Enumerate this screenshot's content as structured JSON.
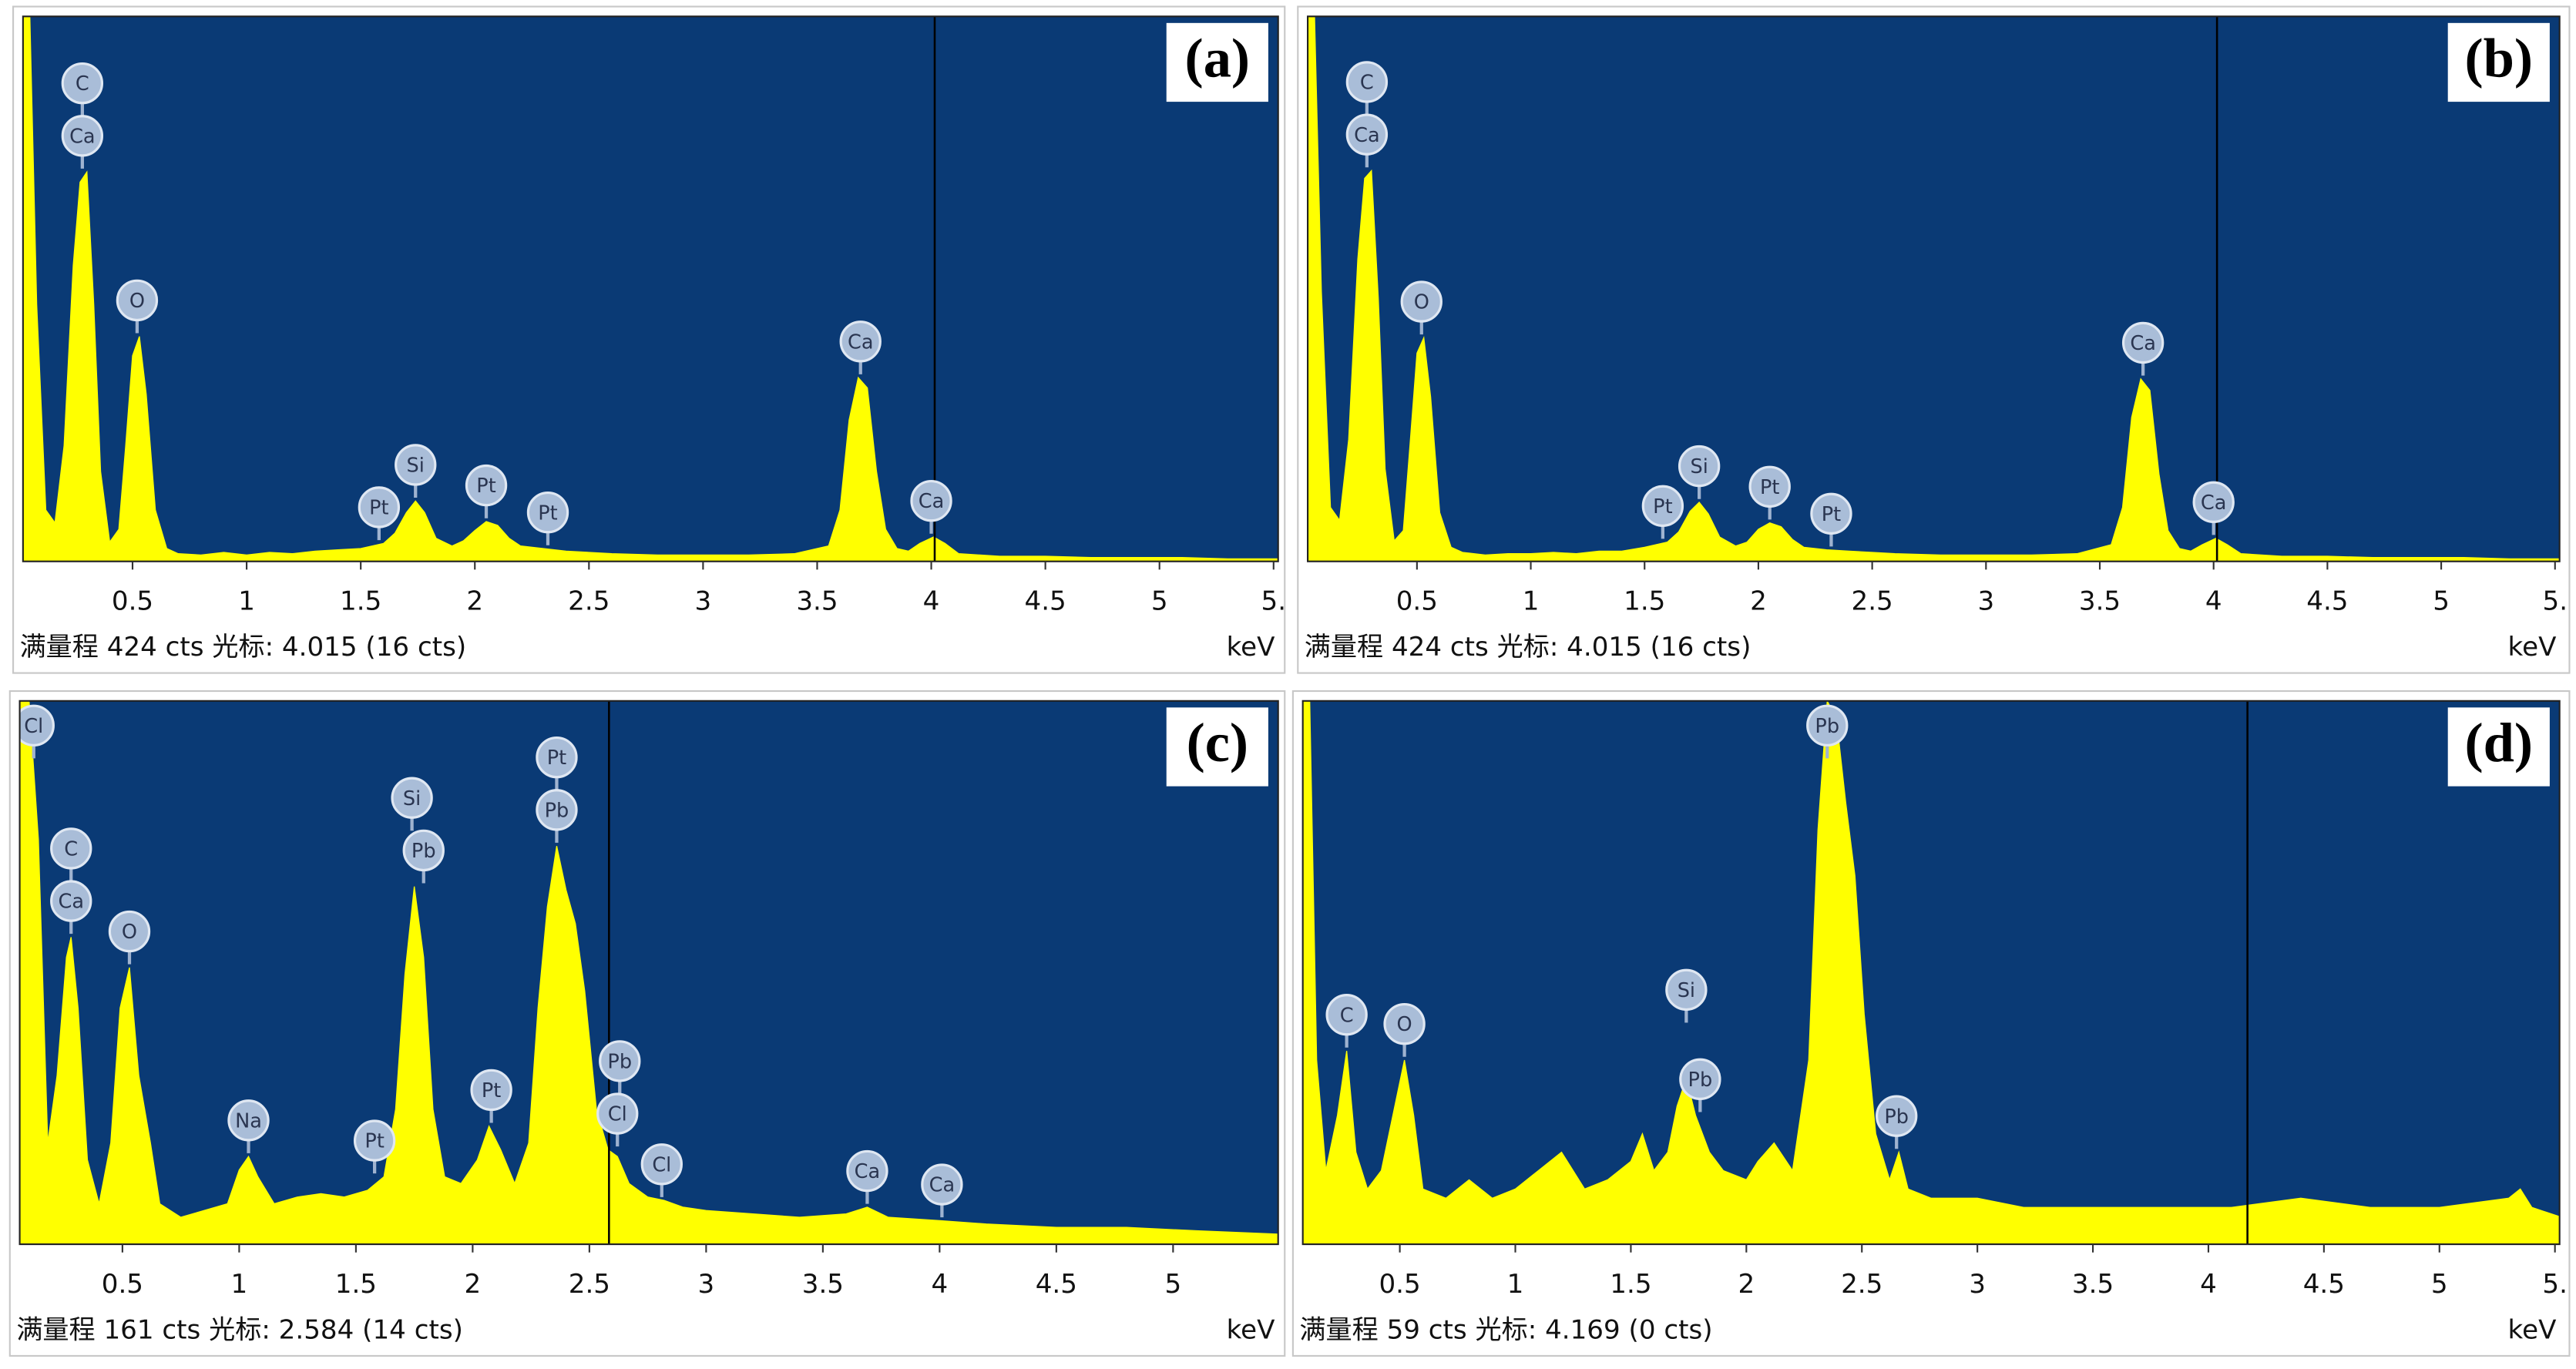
{
  "chart_data": [
    {
      "type": "area",
      "panel_label": "(a)",
      "color": "#ffff00",
      "background": "#0a3a75",
      "x": [
        0.02,
        0.05,
        0.08,
        0.12,
        0.16,
        0.2,
        0.24,
        0.27,
        0.3,
        0.33,
        0.36,
        0.4,
        0.44,
        0.47,
        0.5,
        0.53,
        0.56,
        0.6,
        0.65,
        0.7,
        0.8,
        0.9,
        1.0,
        1.1,
        1.2,
        1.3,
        1.4,
        1.5,
        1.6,
        1.65,
        1.7,
        1.74,
        1.78,
        1.83,
        1.9,
        1.95,
        2.0,
        2.05,
        2.1,
        2.15,
        2.2,
        2.3,
        2.4,
        2.5,
        2.6,
        2.8,
        3.0,
        3.2,
        3.4,
        3.55,
        3.6,
        3.64,
        3.68,
        3.72,
        3.76,
        3.8,
        3.85,
        3.9,
        3.95,
        4.01,
        4.06,
        4.12,
        4.3,
        4.5,
        4.7,
        4.9,
        5.1,
        5.3,
        5.52
      ],
      "values": [
        424,
        424,
        200,
        40,
        30,
        90,
        230,
        295,
        303,
        200,
        70,
        15,
        25,
        90,
        160,
        175,
        130,
        40,
        10,
        6,
        5,
        7,
        5,
        7,
        6,
        8,
        9,
        10,
        14,
        22,
        38,
        47,
        38,
        18,
        12,
        16,
        24,
        31,
        28,
        18,
        12,
        10,
        8,
        7,
        6,
        5,
        5,
        5,
        6,
        12,
        40,
        110,
        143,
        135,
        70,
        25,
        10,
        8,
        14,
        19,
        14,
        6,
        4,
        4,
        3,
        3,
        3,
        2,
        2
      ],
      "xlim": [
        0.02,
        5.52
      ],
      "ylim": [
        0,
        424
      ],
      "xticks": [
        0.5,
        1,
        1.5,
        2,
        2.5,
        3,
        3.5,
        4,
        4.5,
        5,
        {
          "value": 5.5,
          "label": "5."
        }
      ],
      "cursor": 4.015,
      "x_label": "keV",
      "footer": "满量程 424 cts 光标: 4.015  (16 cts)",
      "peak_labels": [
        {
          "text": "C",
          "x": 0.28
        },
        {
          "text": "Ca",
          "x": 0.28
        },
        {
          "text": "O",
          "x": 0.52
        },
        {
          "text": "Pt",
          "x": 1.58
        },
        {
          "text": "Si",
          "x": 1.74
        },
        {
          "text": "Pt",
          "x": 2.05
        },
        {
          "text": "Pt",
          "x": 2.32
        },
        {
          "text": "Ca",
          "x": 3.69
        },
        {
          "text": "Ca",
          "x": 4.0
        }
      ]
    },
    {
      "type": "area",
      "panel_label": "(b)",
      "color": "#ffff00",
      "background": "#0a3a75",
      "x": [
        0.02,
        0.05,
        0.08,
        0.12,
        0.16,
        0.2,
        0.24,
        0.27,
        0.3,
        0.33,
        0.36,
        0.4,
        0.44,
        0.47,
        0.5,
        0.53,
        0.56,
        0.6,
        0.65,
        0.7,
        0.8,
        0.9,
        1.0,
        1.1,
        1.2,
        1.3,
        1.4,
        1.5,
        1.6,
        1.65,
        1.7,
        1.74,
        1.78,
        1.83,
        1.9,
        1.95,
        2.0,
        2.05,
        2.1,
        2.15,
        2.2,
        2.3,
        2.4,
        2.5,
        2.6,
        2.8,
        3.0,
        3.2,
        3.4,
        3.55,
        3.6,
        3.64,
        3.68,
        3.72,
        3.76,
        3.8,
        3.85,
        3.9,
        3.95,
        4.01,
        4.06,
        4.12,
        4.3,
        4.5,
        4.7,
        4.9,
        5.1,
        5.3,
        5.52
      ],
      "values": [
        424,
        424,
        210,
        42,
        32,
        95,
        235,
        298,
        304,
        205,
        72,
        16,
        24,
        92,
        162,
        174,
        128,
        38,
        11,
        7,
        5,
        6,
        6,
        7,
        6,
        8,
        8,
        11,
        15,
        23,
        39,
        46,
        37,
        19,
        12,
        15,
        25,
        30,
        27,
        17,
        11,
        9,
        8,
        7,
        6,
        5,
        5,
        5,
        6,
        13,
        42,
        112,
        142,
        133,
        68,
        24,
        10,
        8,
        13,
        18,
        13,
        6,
        4,
        4,
        3,
        3,
        3,
        2,
        2
      ],
      "xlim": [
        0.02,
        5.52
      ],
      "ylim": [
        0,
        424
      ],
      "xticks": [
        0.5,
        1,
        1.5,
        2,
        2.5,
        3,
        3.5,
        4,
        4.5,
        5,
        {
          "value": 5.5,
          "label": "5."
        }
      ],
      "cursor": 4.015,
      "x_label": "keV",
      "footer": "满量程 424 cts 光标: 4.015  (16 cts)",
      "peak_labels": [
        {
          "text": "C",
          "x": 0.28
        },
        {
          "text": "Ca",
          "x": 0.28
        },
        {
          "text": "O",
          "x": 0.52
        },
        {
          "text": "Pt",
          "x": 1.58
        },
        {
          "text": "Si",
          "x": 1.74
        },
        {
          "text": "Pt",
          "x": 2.05
        },
        {
          "text": "Pt",
          "x": 2.32
        },
        {
          "text": "Ca",
          "x": 3.69
        },
        {
          "text": "Ca",
          "x": 4.0
        }
      ]
    },
    {
      "type": "area",
      "panel_label": "(c)",
      "color": "#ffff00",
      "background": "#0a3a75",
      "x": [
        0.06,
        0.1,
        0.14,
        0.18,
        0.22,
        0.26,
        0.28,
        0.31,
        0.35,
        0.4,
        0.45,
        0.49,
        0.53,
        0.57,
        0.62,
        0.66,
        0.75,
        0.85,
        0.95,
        1.0,
        1.04,
        1.08,
        1.15,
        1.25,
        1.35,
        1.45,
        1.55,
        1.62,
        1.67,
        1.71,
        1.75,
        1.79,
        1.83,
        1.88,
        1.95,
        2.02,
        2.07,
        2.12,
        2.18,
        2.24,
        2.28,
        2.32,
        2.36,
        2.4,
        2.44,
        2.48,
        2.53,
        2.58,
        2.62,
        2.67,
        2.75,
        2.82,
        2.9,
        3.0,
        3.2,
        3.4,
        3.6,
        3.69,
        3.78,
        4.0,
        4.2,
        4.5,
        4.8,
        5.1,
        5.45
      ],
      "values": [
        161,
        161,
        120,
        30,
        50,
        85,
        91,
        70,
        25,
        12,
        30,
        70,
        82,
        50,
        30,
        12,
        8,
        10,
        12,
        22,
        26,
        20,
        12,
        14,
        15,
        14,
        16,
        20,
        40,
        80,
        106,
        85,
        40,
        20,
        18,
        25,
        35,
        28,
        18,
        30,
        70,
        100,
        118,
        105,
        95,
        75,
        40,
        28,
        26,
        18,
        14,
        13,
        11,
        10,
        9,
        8,
        9,
        11,
        8,
        7,
        6,
        5,
        5,
        4,
        3
      ],
      "xlim": [
        0.06,
        5.45
      ],
      "ylim": [
        0,
        161
      ],
      "xticks": [
        0.5,
        1,
        1.5,
        2,
        2.5,
        3,
        3.5,
        4,
        4.5,
        5
      ],
      "cursor": 2.584,
      "x_label": "keV",
      "footer": "满量程 161 cts 光标: 2.584  (14 cts)",
      "peak_labels": [
        {
          "text": "Cl",
          "x": 0.12
        },
        {
          "text": "C",
          "x": 0.28
        },
        {
          "text": "Ca",
          "x": 0.28
        },
        {
          "text": "O",
          "x": 0.53
        },
        {
          "text": "Na",
          "x": 1.04
        },
        {
          "text": "Pt",
          "x": 1.58
        },
        {
          "text": "Si",
          "x": 1.74
        },
        {
          "text": "Pb",
          "x": 1.79
        },
        {
          "text": "Pt",
          "x": 2.08
        },
        {
          "text": "Pt",
          "x": 2.36
        },
        {
          "text": "Pb",
          "x": 2.36
        },
        {
          "text": "Pb",
          "x": 2.63
        },
        {
          "text": "Cl",
          "x": 2.62
        },
        {
          "text": "Cl",
          "x": 2.81
        },
        {
          "text": "Ca",
          "x": 3.69
        },
        {
          "text": "Ca",
          "x": 4.01
        }
      ]
    },
    {
      "type": "area",
      "panel_label": "(d)",
      "color": "#ffff00",
      "background": "#0a3a75",
      "x": [
        0.08,
        0.11,
        0.14,
        0.18,
        0.23,
        0.27,
        0.31,
        0.36,
        0.42,
        0.47,
        0.52,
        0.56,
        0.6,
        0.7,
        0.8,
        0.9,
        1.0,
        1.1,
        1.2,
        1.3,
        1.4,
        1.5,
        1.55,
        1.6,
        1.66,
        1.7,
        1.74,
        1.78,
        1.84,
        1.9,
        2.0,
        2.05,
        2.12,
        2.2,
        2.27,
        2.31,
        2.35,
        2.39,
        2.43,
        2.47,
        2.51,
        2.56,
        2.62,
        2.66,
        2.7,
        2.8,
        3.0,
        3.2,
        3.5,
        3.8,
        4.1,
        4.4,
        4.7,
        5.0,
        5.3,
        5.35,
        5.4,
        5.52
      ],
      "values": [
        59,
        59,
        20,
        8,
        14,
        21,
        10,
        6,
        8,
        14,
        20,
        14,
        6,
        5,
        7,
        5,
        6,
        8,
        10,
        6,
        7,
        9,
        12,
        8,
        10,
        15,
        18,
        14,
        10,
        8,
        7,
        9,
        11,
        8,
        20,
        45,
        59,
        57,
        48,
        40,
        25,
        12,
        7,
        10,
        6,
        5,
        5,
        4,
        4,
        4,
        4,
        5,
        4,
        4,
        5,
        6,
        4,
        3
      ],
      "xlim": [
        0.08,
        5.52
      ],
      "ylim": [
        0,
        59
      ],
      "xticks": [
        0.5,
        1,
        1.5,
        2,
        2.5,
        3,
        3.5,
        4,
        4.5,
        5,
        {
          "value": 5.5,
          "label": "5."
        }
      ],
      "cursor": 4.169,
      "x_label": "keV",
      "footer": "满量程 59 cts 光标: 4.169  (0 cts)",
      "peak_labels": [
        {
          "text": "C",
          "x": 0.27
        },
        {
          "text": "O",
          "x": 0.52
        },
        {
          "text": "Si",
          "x": 1.74
        },
        {
          "text": "Pb",
          "x": 1.8
        },
        {
          "text": "Pb",
          "x": 2.35
        },
        {
          "text": "Pb",
          "x": 2.65
        }
      ]
    }
  ]
}
